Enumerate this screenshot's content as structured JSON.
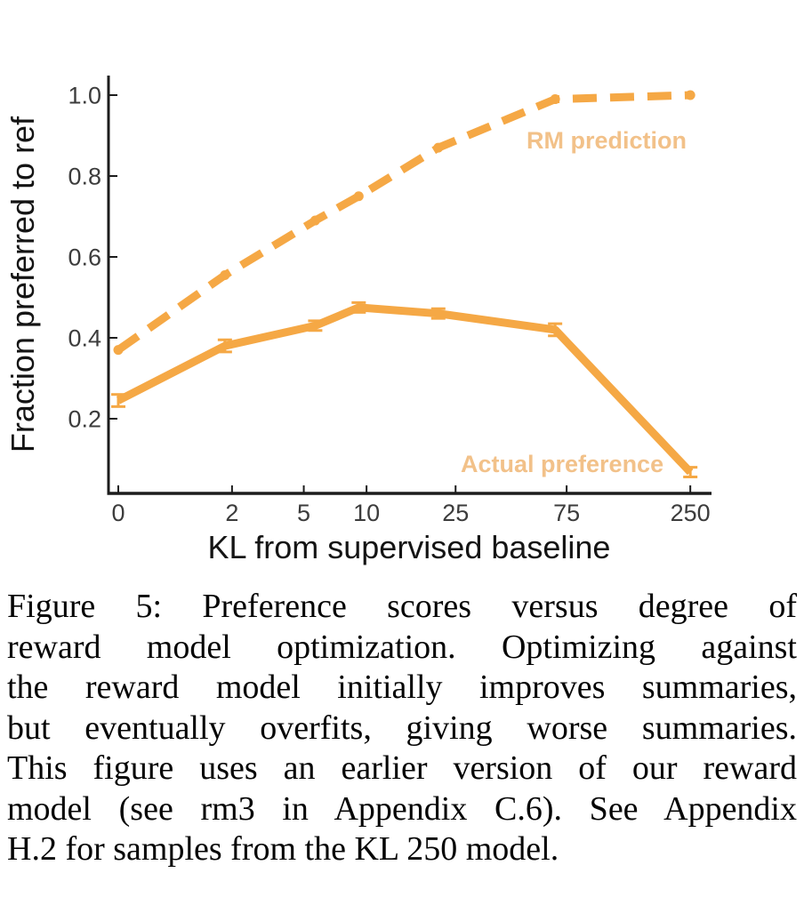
{
  "figure": {
    "caption_lines": [
      "Figure 5:  Preference scores versus degree of",
      "reward model optimization. Optimizing against",
      "the reward model initially improves summaries,",
      "but eventually overfits, giving worse summaries.",
      "This figure uses an earlier version of our reward",
      "model (see rm3 in Appendix C.6). See Appendix",
      "H.2 for samples from the KL 250 model."
    ]
  },
  "chart": {
    "ylabel": "Fraction preferred to ref",
    "xlabel": "KL from supervised baseline",
    "annotations": {
      "rm": "RM prediction",
      "actual": "Actual preference"
    },
    "colors": {
      "line_orange": "#f5a845",
      "label_orange": "#f2c189",
      "axis": "#1c1c1c",
      "tick_text": "#3c3c3c"
    }
  },
  "chart_data": {
    "type": "line",
    "title": "",
    "xlabel": "KL from supervised baseline",
    "ylabel": "Fraction preferred to ref",
    "x_scale": "log(1+x)",
    "x_ticks": [
      0,
      2,
      5,
      10,
      25,
      75,
      250
    ],
    "y_ticks": [
      1.0,
      0.8,
      0.6,
      0.4,
      0.2
    ],
    "ylim": [
      0.02,
      1.05
    ],
    "grid": false,
    "legend_position": "inline-annotations",
    "series": [
      {
        "name": "RM prediction",
        "style": "dashed",
        "marker": "circle",
        "x": [
          0,
          1.8,
          5.7,
          9.2,
          21,
          67,
          250
        ],
        "y": [
          0.37,
          0.555,
          0.69,
          0.75,
          0.87,
          0.99,
          1.0
        ]
      },
      {
        "name": "Actual preference",
        "style": "solid",
        "marker": "errorbar",
        "x": [
          0,
          1.8,
          5.7,
          9.2,
          21,
          67,
          250
        ],
        "y": [
          0.245,
          0.38,
          0.43,
          0.475,
          0.46,
          0.42,
          0.068
        ],
        "yerr": [
          0.015,
          0.015,
          0.012,
          0.012,
          0.012,
          0.015,
          0.012
        ]
      }
    ]
  }
}
